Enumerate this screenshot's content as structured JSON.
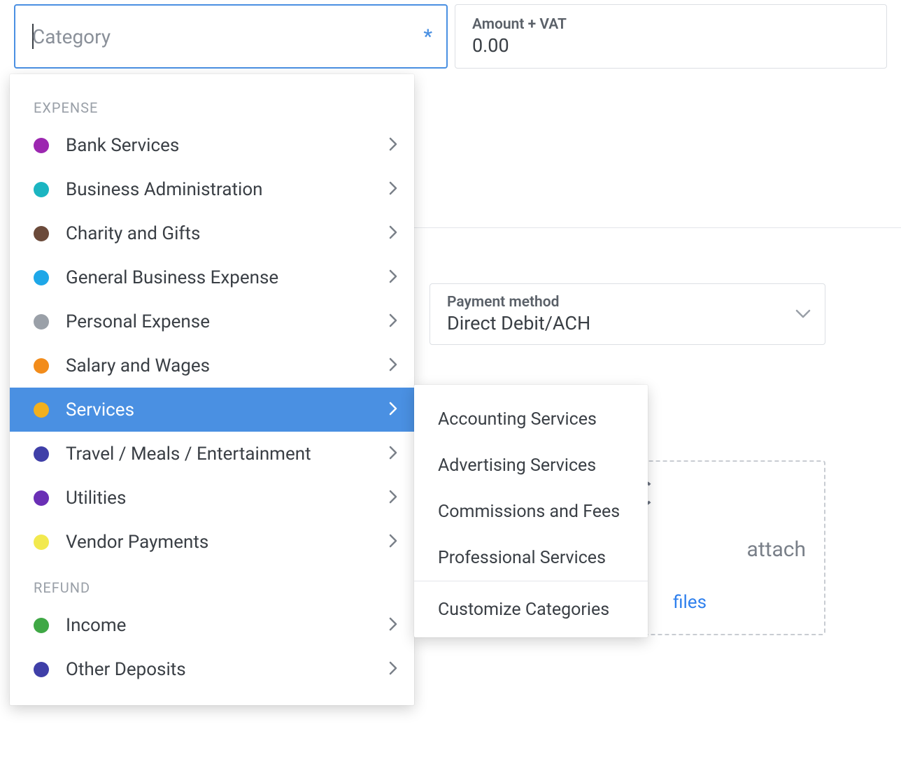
{
  "category_field": {
    "placeholder": "Category",
    "required_marker": "*"
  },
  "amount_field": {
    "label": "Amount + VAT",
    "value": "0.00"
  },
  "payment_method": {
    "label": "Payment method",
    "value": "Direct Debit/ACH"
  },
  "attach": {
    "hint_suffix": " attach",
    "browse_suffix": " files"
  },
  "dropdown": {
    "sections": [
      {
        "title": "EXPENSE",
        "items": [
          {
            "label": "Bank Services",
            "color": "#9c27b0",
            "selected": false
          },
          {
            "label": "Business Administration",
            "color": "#1bb5c1",
            "selected": false
          },
          {
            "label": "Charity and Gifts",
            "color": "#6b4a3a",
            "selected": false
          },
          {
            "label": "General Business Expense",
            "color": "#1ea7e8",
            "selected": false
          },
          {
            "label": "Personal Expense",
            "color": "#9aa0a8",
            "selected": false
          },
          {
            "label": "Salary and Wages",
            "color": "#f28c1b",
            "selected": false
          },
          {
            "label": "Services",
            "color": "#f2b01e",
            "selected": true
          },
          {
            "label": "Travel / Meals / Entertainment",
            "color": "#3f3fa8",
            "selected": false
          },
          {
            "label": "Utilities",
            "color": "#6a2fb5",
            "selected": false
          },
          {
            "label": "Vendor Payments",
            "color": "#f2e94e",
            "selected": false
          }
        ]
      },
      {
        "title": "REFUND",
        "items": [
          {
            "label": "Income",
            "color": "#3fa845",
            "selected": false
          },
          {
            "label": "Other Deposits",
            "color": "#3f3fa8",
            "selected": false
          }
        ]
      }
    ]
  },
  "submenu": {
    "items": [
      "Accounting Services",
      "Advertising Services",
      "Commissions and Fees",
      "Professional Services"
    ],
    "customize": "Customize Categories"
  },
  "colors": {
    "accent": "#4a90e2",
    "text": "#3a3f45",
    "muted": "#7a8089",
    "divider": "#e4e6ea",
    "link": "#2f80ed"
  }
}
